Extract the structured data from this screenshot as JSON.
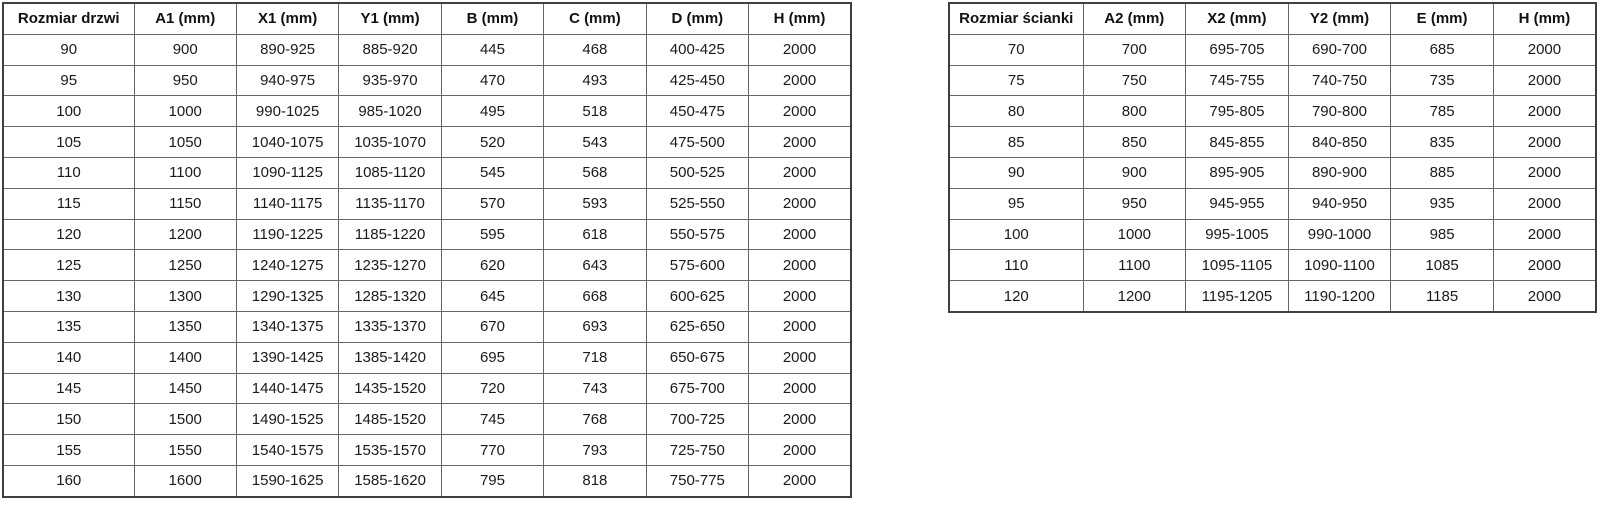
{
  "page": {
    "background": "#ffffff",
    "border_color": "#686868",
    "outer_border_color": "#3f3f3f",
    "text_color": "#1a1a1a"
  },
  "door_table": {
    "headers": [
      "Rozmiar drzwi",
      "A1 (mm)",
      "X1 (mm)",
      "Y1 (mm)",
      "B (mm)",
      "C (mm)",
      "D (mm)",
      "H (mm)"
    ],
    "rows": [
      [
        "90",
        "900",
        "890-925",
        "885-920",
        "445",
        "468",
        "400-425",
        "2000"
      ],
      [
        "95",
        "950",
        "940-975",
        "935-970",
        "470",
        "493",
        "425-450",
        "2000"
      ],
      [
        "100",
        "1000",
        "990-1025",
        "985-1020",
        "495",
        "518",
        "450-475",
        "2000"
      ],
      [
        "105",
        "1050",
        "1040-1075",
        "1035-1070",
        "520",
        "543",
        "475-500",
        "2000"
      ],
      [
        "110",
        "1100",
        "1090-1125",
        "1085-1120",
        "545",
        "568",
        "500-525",
        "2000"
      ],
      [
        "115",
        "1150",
        "1140-1175",
        "1135-1170",
        "570",
        "593",
        "525-550",
        "2000"
      ],
      [
        "120",
        "1200",
        "1190-1225",
        "1185-1220",
        "595",
        "618",
        "550-575",
        "2000"
      ],
      [
        "125",
        "1250",
        "1240-1275",
        "1235-1270",
        "620",
        "643",
        "575-600",
        "2000"
      ],
      [
        "130",
        "1300",
        "1290-1325",
        "1285-1320",
        "645",
        "668",
        "600-625",
        "2000"
      ],
      [
        "135",
        "1350",
        "1340-1375",
        "1335-1370",
        "670",
        "693",
        "625-650",
        "2000"
      ],
      [
        "140",
        "1400",
        "1390-1425",
        "1385-1420",
        "695",
        "718",
        "650-675",
        "2000"
      ],
      [
        "145",
        "1450",
        "1440-1475",
        "1435-1520",
        "720",
        "743",
        "675-700",
        "2000"
      ],
      [
        "150",
        "1500",
        "1490-1525",
        "1485-1520",
        "745",
        "768",
        "700-725",
        "2000"
      ],
      [
        "155",
        "1550",
        "1540-1575",
        "1535-1570",
        "770",
        "793",
        "725-750",
        "2000"
      ],
      [
        "160",
        "1600",
        "1590-1625",
        "1585-1620",
        "795",
        "818",
        "750-775",
        "2000"
      ]
    ]
  },
  "wall_table": {
    "headers": [
      "Rozmiar ścianki",
      "A2 (mm)",
      "X2 (mm)",
      "Y2 (mm)",
      "E (mm)",
      "H (mm)"
    ],
    "rows": [
      [
        "70",
        "700",
        "695-705",
        "690-700",
        "685",
        "2000"
      ],
      [
        "75",
        "750",
        "745-755",
        "740-750",
        "735",
        "2000"
      ],
      [
        "80",
        "800",
        "795-805",
        "790-800",
        "785",
        "2000"
      ],
      [
        "85",
        "850",
        "845-855",
        "840-850",
        "835",
        "2000"
      ],
      [
        "90",
        "900",
        "895-905",
        "890-900",
        "885",
        "2000"
      ],
      [
        "95",
        "950",
        "945-955",
        "940-950",
        "935",
        "2000"
      ],
      [
        "100",
        "1000",
        "995-1005",
        "990-1000",
        "985",
        "2000"
      ],
      [
        "110",
        "1100",
        "1095-1105",
        "1090-1100",
        "1085",
        "2000"
      ],
      [
        "120",
        "1200",
        "1195-1205",
        "1190-1200",
        "1185",
        "2000"
      ]
    ]
  }
}
